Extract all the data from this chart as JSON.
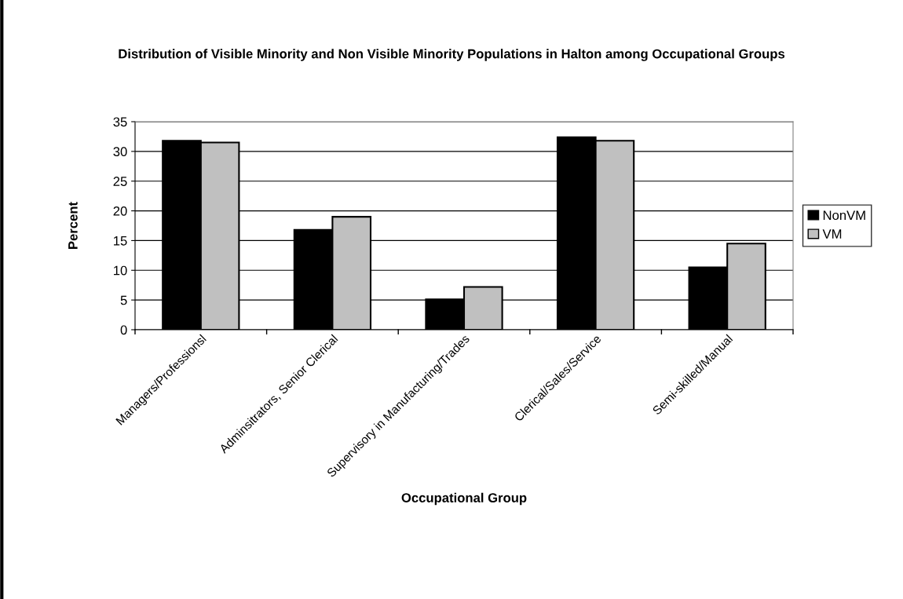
{
  "chart_data": {
    "type": "bar",
    "title": "Distribution of Visible Minority and Non Visible Minority Populations in Halton among Occupational Groups",
    "xlabel": "Occupational Group",
    "ylabel": "Percent",
    "categories": [
      "Managers/Professionsl",
      "Adminsitrators, Senior Clerical",
      "Supervisory in Manufacturing/Trades",
      "Clerical/Sales/Service",
      "Semi-skilled/Manual"
    ],
    "series": [
      {
        "name": "NonVM",
        "color": "#000000",
        "values": [
          31.8,
          16.8,
          5.1,
          32.4,
          10.5
        ]
      },
      {
        "name": "VM",
        "color": "#c0c0c0",
        "values": [
          31.5,
          19.0,
          7.2,
          31.8,
          14.5
        ]
      }
    ],
    "ylim": [
      0,
      35
    ],
    "yticks": [
      0,
      5,
      10,
      15,
      20,
      25,
      30,
      35
    ],
    "grid": "y",
    "legend": "right"
  }
}
